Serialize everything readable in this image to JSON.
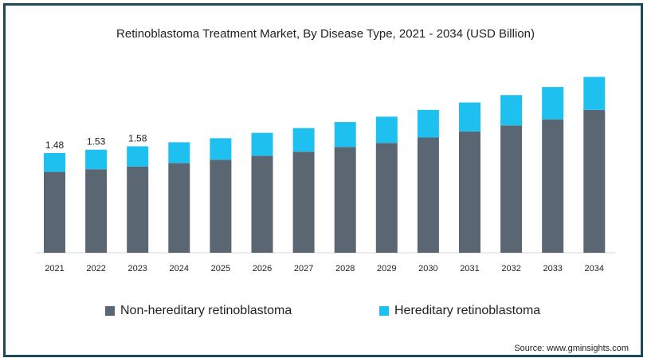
{
  "title": "Retinoblastoma Treatment Market, By Disease Type, 2021 - 2034 (USD Billion)",
  "source": "Source: www.gminsights.com",
  "colors": {
    "non_hereditary": "#5a6672",
    "hereditary": "#1ec0ef",
    "frame": "#1b4a5a"
  },
  "legend": [
    {
      "label": "Non-hereditary retinoblastoma",
      "color": "#5a6672"
    },
    {
      "label": "Hereditary retinoblastoma",
      "color": "#1ec0ef"
    }
  ],
  "chart_data": {
    "type": "bar",
    "stacked": true,
    "title": "Retinoblastoma Treatment Market, By Disease Type, 2021 - 2034 (USD Billion)",
    "categories": [
      "2021",
      "2022",
      "2023",
      "2024",
      "2025",
      "2026",
      "2027",
      "2028",
      "2029",
      "2030",
      "2031",
      "2032",
      "2033",
      "2034"
    ],
    "series": [
      {
        "name": "Non-hereditary retinoblastoma",
        "values": [
          1.2,
          1.24,
          1.28,
          1.33,
          1.38,
          1.44,
          1.5,
          1.57,
          1.63,
          1.71,
          1.8,
          1.89,
          1.98,
          2.12
        ]
      },
      {
        "name": "Hereditary retinoblastoma",
        "values": [
          0.28,
          0.29,
          0.3,
          0.31,
          0.32,
          0.34,
          0.35,
          0.37,
          0.39,
          0.41,
          0.43,
          0.45,
          0.48,
          0.49
        ]
      }
    ],
    "data_labels": [
      "1.48",
      "1.53",
      "1.58"
    ],
    "legend_position": "bottom",
    "grid": false
  }
}
